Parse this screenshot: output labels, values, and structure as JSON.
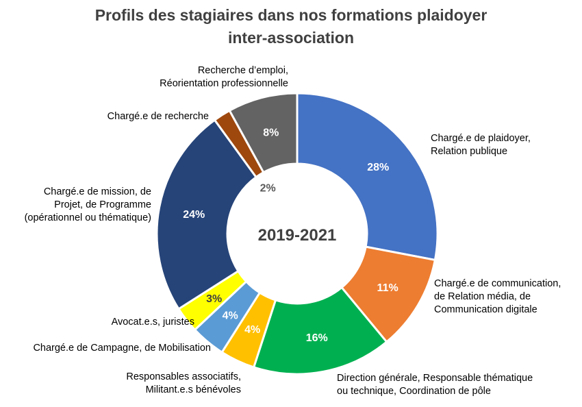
{
  "chart_data": {
    "type": "pie",
    "variant": "donut",
    "title_lines": [
      "Profils des stagiaires dans nos formations plaidoyer",
      "inter-association"
    ],
    "center_label": "2019-2021",
    "slices": [
      {
        "label_lines": [
          "Chargé.e de plaidoyer,",
          "Relation publique"
        ],
        "value": 28,
        "display": "28%",
        "color": "#4472c4",
        "text_color": "#ffffff"
      },
      {
        "label_lines": [
          "Chargé.e de communication,",
          "de Relation média, de",
          "Communication digitale"
        ],
        "value": 11,
        "display": "11%",
        "color": "#ed7d31",
        "text_color": "#ffffff"
      },
      {
        "label_lines": [
          "Direction générale, Responsable thématique",
          "ou technique, Coordination de pôle"
        ],
        "value": 16,
        "display": "16%",
        "color": "#00b050",
        "text_color": "#ffffff"
      },
      {
        "label_lines": [
          "Responsables associatifs,",
          "Militant.e.s bénévoles"
        ],
        "value": 4,
        "display": "4%",
        "color": "#ffc000",
        "text_color": "#ffffff"
      },
      {
        "label_lines": [
          "Chargé.e de Campagne, de Mobilisation"
        ],
        "value": 4,
        "display": "4%",
        "color": "#5b9bd5",
        "text_color": "#ffffff"
      },
      {
        "label_lines": [
          "Avocat.e.s, juristes"
        ],
        "value": 3,
        "display": "3%",
        "color": "#ffff00",
        "text_color": "#404040"
      },
      {
        "label_lines": [
          "Chargé.e de mission, de",
          "Projet, de Programme",
          "(opérationnel ou thématique)"
        ],
        "value": 24,
        "display": "24%",
        "color": "#264478",
        "text_color": "#ffffff"
      },
      {
        "label_lines": [
          "Chargé.e de recherche"
        ],
        "value": 2,
        "display": "2%",
        "color": "#9e480e",
        "text_color": "#595959"
      },
      {
        "label_lines": [
          "Recherche d’emploi,",
          "Réorientation professionnelle"
        ],
        "value": 8,
        "display": "8%",
        "color": "#636363",
        "text_color": "#ffffff"
      }
    ]
  }
}
